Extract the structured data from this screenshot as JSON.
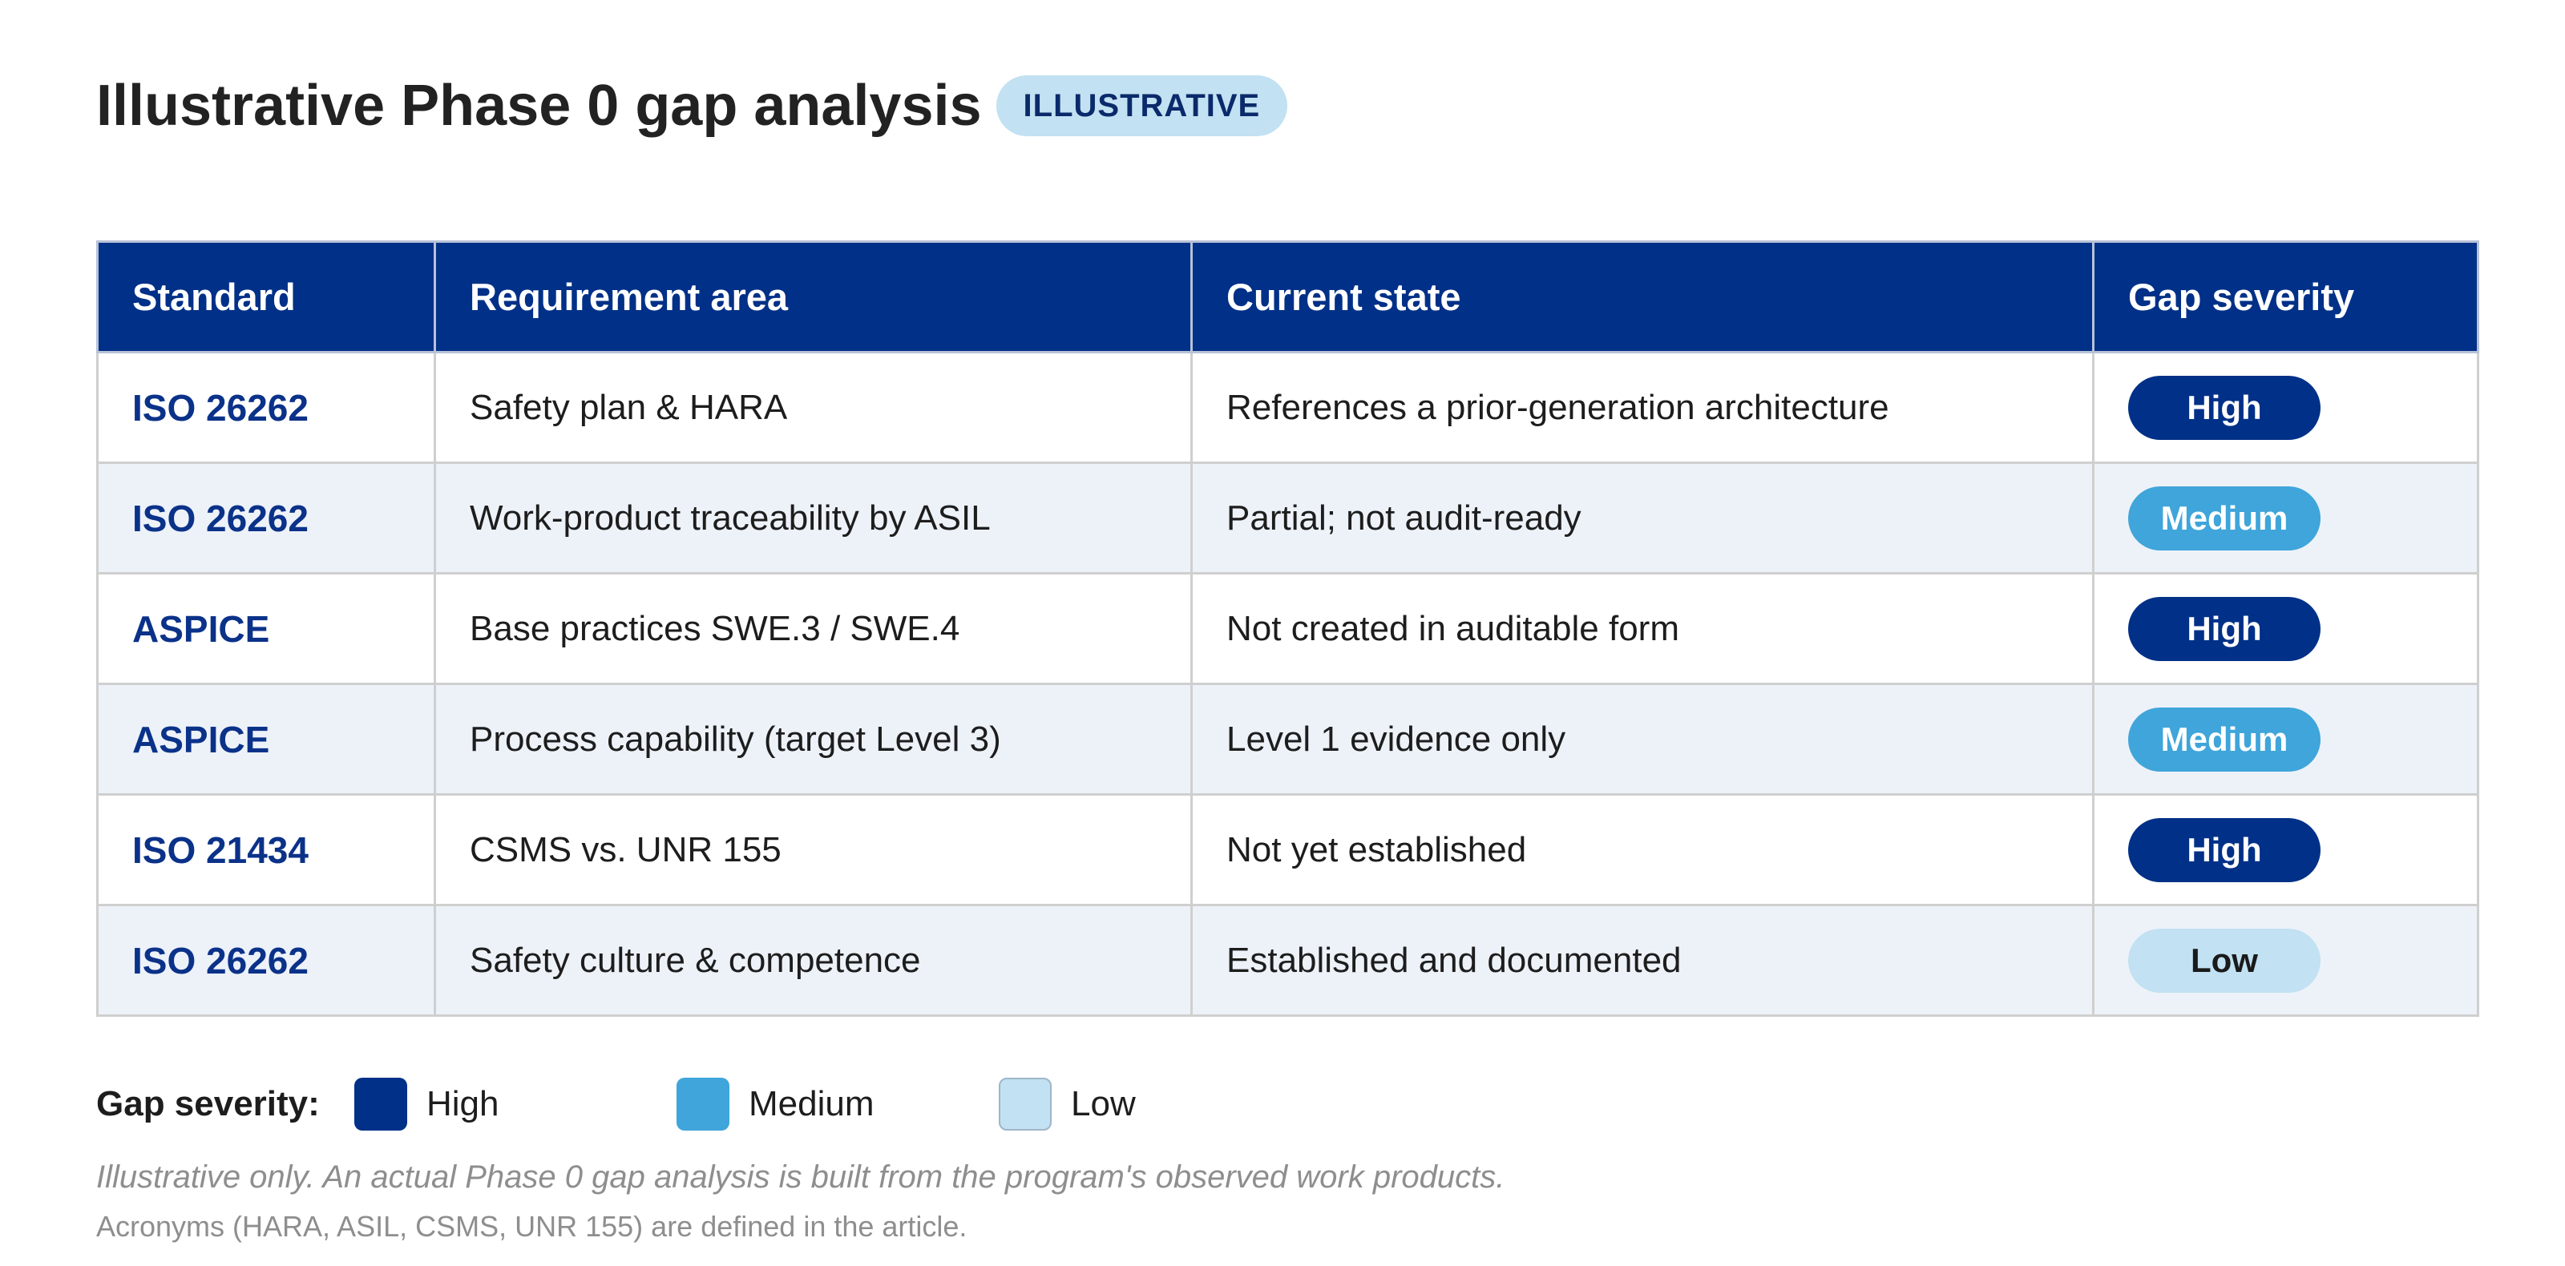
{
  "header": {
    "title": "Illustrative Phase 0 gap analysis",
    "badge": "ILLUSTRATIVE"
  },
  "table": {
    "columns": [
      "Standard",
      "Requirement area",
      "Current state",
      "Gap severity"
    ],
    "rows": [
      {
        "standard": "ISO 26262",
        "area": "Safety plan & HARA",
        "state": "References a prior-generation architecture",
        "severity": "High"
      },
      {
        "standard": "ISO 26262",
        "area": "Work-product traceability by ASIL",
        "state": "Partial; not audit-ready",
        "severity": "Medium"
      },
      {
        "standard": "ASPICE",
        "area": "Base practices SWE.3 / SWE.4",
        "state": "Not created in auditable form",
        "severity": "High"
      },
      {
        "standard": "ASPICE",
        "area": "Process capability (target Level 3)",
        "state": "Level 1 evidence only",
        "severity": "Medium"
      },
      {
        "standard": "ISO 21434",
        "area": "CSMS vs. UNR 155",
        "state": "Not yet established",
        "severity": "High"
      },
      {
        "standard": "ISO 26262",
        "area": "Safety culture & competence",
        "state": "Established and documented",
        "severity": "Low"
      }
    ]
  },
  "legend": {
    "title": "Gap severity:",
    "items": [
      {
        "label": "High",
        "color": "#003087"
      },
      {
        "label": "Medium",
        "color": "#3fa5da"
      },
      {
        "label": "Low",
        "color": "#c2e1f2"
      }
    ]
  },
  "footer": {
    "note": "Illustrative only. An actual Phase 0 gap analysis is built from the program's observed work products.",
    "acronyms": "Acronyms (HARA, ASIL, CSMS, UNR 155) are defined in the article."
  },
  "colors": {
    "header_bg": "#003087",
    "high": "#003087",
    "medium": "#3fa5da",
    "low": "#c2e1f2",
    "alt_row": "#edf2f9"
  }
}
